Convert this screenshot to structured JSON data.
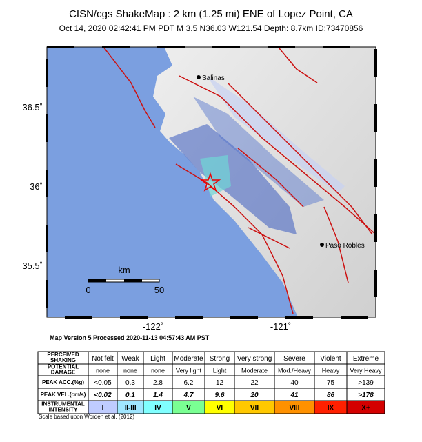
{
  "header": {
    "title": "CISN/cgs ShakeMap : 2 km (1.25 mi) ENE of Lopez Point, CA",
    "subtitle": "Oct 14, 2020 02:42:41 PM PDT   M 3.5   N36.03 W121.54   Depth: 8.7km   ID:73470856"
  },
  "map": {
    "cities": [
      "Salinas",
      "Paso Robles"
    ],
    "lat_labels": [
      "36.5˚",
      "36˚",
      "35.5˚"
    ],
    "lon_labels": [
      "-122˚",
      "-121˚"
    ],
    "scale_bar": {
      "unit": "km",
      "ticks": [
        "0",
        "50"
      ]
    }
  },
  "map_version": "Map Version 5 Processed 2020-11-13 04:57:43 AM PST",
  "table": {
    "rows": [
      [
        "PERCEIVED SHAKING",
        "Not felt",
        "Weak",
        "Light",
        "Moderate",
        "Strong",
        "Very strong",
        "Severe",
        "Violent",
        "Extreme"
      ],
      [
        "POTENTIAL DAMAGE",
        "none",
        "none",
        "none",
        "Very light",
        "Light",
        "Moderate",
        "Mod./Heavy",
        "Heavy",
        "Very Heavy"
      ],
      [
        "PEAK ACC.(%g)",
        "<0.05",
        "0.3",
        "2.8",
        "6.2",
        "12",
        "22",
        "40",
        "75",
        ">139"
      ],
      [
        "PEAK VEL.(cm/s)",
        "<0.02",
        "0.1",
        "1.4",
        "4.7",
        "9.6",
        "20",
        "41",
        "86",
        ">178"
      ],
      [
        "INSTRUMENTAL INTENSITY",
        "I",
        "II-III",
        "IV",
        "V",
        "VI",
        "VII",
        "VIII",
        "IX",
        "X+"
      ]
    ]
  },
  "footnote": "Scale based upon Worden et al. (2012)"
}
